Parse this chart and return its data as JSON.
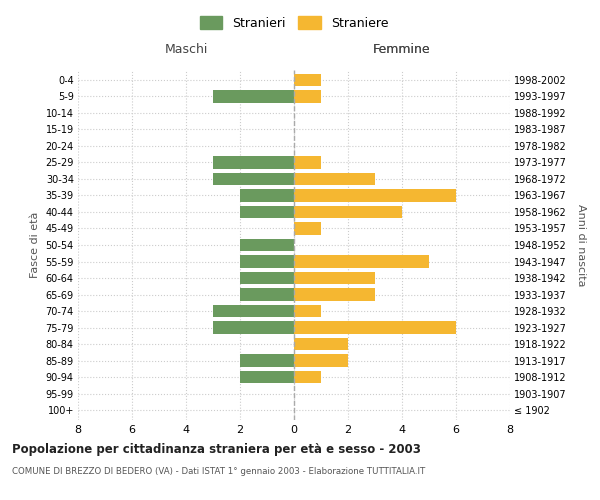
{
  "age_groups": [
    "100+",
    "95-99",
    "90-94",
    "85-89",
    "80-84",
    "75-79",
    "70-74",
    "65-69",
    "60-64",
    "55-59",
    "50-54",
    "45-49",
    "40-44",
    "35-39",
    "30-34",
    "25-29",
    "20-24",
    "15-19",
    "10-14",
    "5-9",
    "0-4"
  ],
  "birth_years": [
    "≤ 1902",
    "1903-1907",
    "1908-1912",
    "1913-1917",
    "1918-1922",
    "1923-1927",
    "1928-1932",
    "1933-1937",
    "1938-1942",
    "1943-1947",
    "1948-1952",
    "1953-1957",
    "1958-1962",
    "1963-1967",
    "1968-1972",
    "1973-1977",
    "1978-1982",
    "1983-1987",
    "1988-1992",
    "1993-1997",
    "1998-2002"
  ],
  "males": [
    0,
    0,
    2,
    2,
    0,
    3,
    3,
    2,
    2,
    2,
    2,
    0,
    2,
    2,
    3,
    3,
    0,
    0,
    0,
    3,
    0
  ],
  "females": [
    0,
    0,
    1,
    2,
    2,
    6,
    1,
    3,
    3,
    5,
    0,
    1,
    4,
    6,
    3,
    1,
    0,
    0,
    0,
    1,
    1
  ],
  "male_color": "#6a9a5e",
  "female_color": "#f5b731",
  "background_color": "#ffffff",
  "grid_color": "#cccccc",
  "title": "Popolazione per cittadinanza straniera per età e sesso - 2003",
  "subtitle": "COMUNE DI BREZZO DI BEDERO (VA) - Dati ISTAT 1° gennaio 2003 - Elaborazione TUTTITALIA.IT",
  "xlabel_left": "Maschi",
  "xlabel_right": "Femmine",
  "ylabel_left": "Fasce di età",
  "ylabel_right": "Anni di nascita",
  "legend_male": "Stranieri",
  "legend_female": "Straniere",
  "xlim": 8,
  "bar_height": 0.75
}
